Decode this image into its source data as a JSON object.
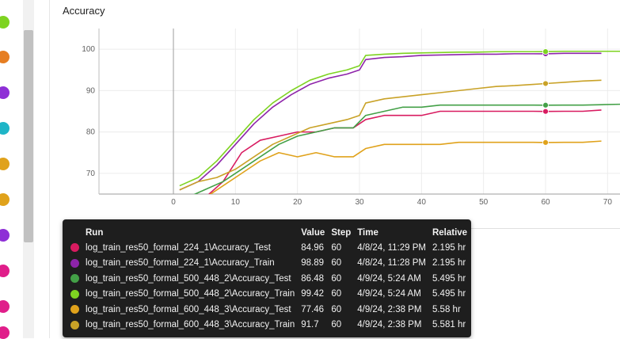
{
  "card": {
    "title": "Accuracy"
  },
  "sidebar": {
    "run_colors": [
      "#7ed321",
      "#e67e22",
      "#8e2fd6",
      "#1fb5c7",
      "#e0a21b",
      "#e0a21b",
      "#8e2fd6",
      "#e01e8a",
      "#e01e8a",
      "#e01e8a"
    ]
  },
  "chart_data": {
    "type": "line",
    "title": "Accuracy",
    "xlabel": "",
    "ylabel": "",
    "xlim": [
      -12,
      72
    ],
    "ylim": [
      65,
      105
    ],
    "xticks": [
      "0",
      "10",
      "20",
      "30",
      "40",
      "50",
      "60",
      "70"
    ],
    "yticks": [
      "70",
      "80",
      "90",
      "100"
    ],
    "crosshair_step": 60,
    "series": [
      {
        "name": "log_train_res50_formal_224_1\\Accuracy_Test",
        "color": "#d81b60",
        "x": [
          2,
          5,
          8,
          11,
          14,
          17,
          20,
          23,
          26,
          29,
          31,
          34,
          37,
          40,
          43,
          46,
          49,
          52,
          55,
          58,
          60,
          63,
          66,
          69
        ],
        "y": [
          63,
          64,
          68,
          75,
          78,
          79,
          80,
          80,
          81,
          81,
          83,
          84,
          84,
          84,
          85,
          85,
          85,
          85,
          85,
          85,
          84.96,
          85,
          85,
          85.3
        ]
      },
      {
        "name": "log_train_res50_formal_224_1\\Accuracy_Train",
        "color": "#8e24aa",
        "x": [
          1,
          4,
          7,
          10,
          13,
          16,
          19,
          22,
          25,
          28,
          30,
          31,
          34,
          37,
          40,
          43,
          46,
          49,
          52,
          55,
          58,
          60,
          63,
          66,
          69
        ],
        "y": [
          66,
          68,
          72,
          77,
          82,
          86,
          89,
          91.5,
          93,
          94,
          95,
          97.5,
          98,
          98.2,
          98.5,
          98.6,
          98.7,
          98.8,
          98.8,
          98.9,
          98.9,
          98.89,
          99,
          99,
          99
        ]
      },
      {
        "name": "log_train_res50_formal_500_448_2\\Accuracy_Test",
        "color": "#43a047",
        "x": [
          2,
          5,
          8,
          11,
          14,
          17,
          20,
          23,
          26,
          29,
          31,
          34,
          37,
          40,
          43,
          46,
          49,
          52,
          55,
          58,
          60,
          63,
          66,
          69,
          72
        ],
        "y": [
          64,
          66,
          68,
          71,
          74,
          77,
          79,
          80,
          81,
          81,
          84,
          85,
          86,
          86,
          86.5,
          86.5,
          86.5,
          86.5,
          86.5,
          86.5,
          86.48,
          86.5,
          86.5,
          86.6,
          86.7
        ]
      },
      {
        "name": "log_train_res50_formal_500_448_2\\Accuracy_Train",
        "color": "#7ed321",
        "x": [
          1,
          4,
          7,
          10,
          13,
          16,
          19,
          22,
          25,
          28,
          30,
          31,
          34,
          37,
          40,
          43,
          46,
          49,
          52,
          55,
          58,
          60,
          63,
          66,
          69,
          72
        ],
        "y": [
          67,
          69,
          73,
          78,
          83,
          87,
          90,
          92.5,
          94,
          95,
          96,
          98.5,
          98.8,
          99,
          99.1,
          99.2,
          99.3,
          99.3,
          99.4,
          99.4,
          99.4,
          99.42,
          99.5,
          99.5,
          99.5,
          99.5
        ]
      },
      {
        "name": "log_train_res50_formal_600_448_3\\Accuracy_Test",
        "color": "#e0a21b",
        "x": [
          2,
          5,
          8,
          11,
          14,
          17,
          20,
          23,
          26,
          29,
          31,
          34,
          37,
          40,
          43,
          46,
          49,
          52,
          55,
          58,
          60,
          63,
          66,
          69
        ],
        "y": [
          62,
          64,
          67,
          70,
          73,
          75,
          74,
          75,
          74,
          74,
          76,
          77,
          77,
          77,
          77,
          77.5,
          77.5,
          77.5,
          77.5,
          77.5,
          77.46,
          77.5,
          77.5,
          77.8
        ]
      },
      {
        "name": "log_train_res50_formal_600_448_3\\Accuracy_Train",
        "color": "#c9a227",
        "x": [
          1,
          4,
          7,
          10,
          13,
          16,
          19,
          22,
          25,
          28,
          30,
          31,
          34,
          37,
          40,
          43,
          46,
          49,
          52,
          55,
          58,
          60,
          63,
          66,
          69
        ],
        "y": [
          66,
          68,
          69,
          71,
          74,
          77,
          79,
          81,
          82,
          83,
          84,
          87,
          88,
          88.5,
          89,
          89.5,
          90,
          90.5,
          91,
          91.2,
          91.5,
          91.7,
          92,
          92.3,
          92.5
        ]
      }
    ]
  },
  "tooltip": {
    "headers": {
      "run": "Run",
      "value": "Value",
      "step": "Step",
      "time": "Time",
      "relative": "Relative"
    },
    "rows": [
      {
        "color": "#d81b60",
        "run": "log_train_res50_formal_224_1\\Accuracy_Test",
        "value": "84.96",
        "step": "60",
        "time": "4/8/24, 11:29 PM",
        "relative": "2.195 hr"
      },
      {
        "color": "#8e24aa",
        "run": "log_train_res50_formal_224_1\\Accuracy_Train",
        "value": "98.89",
        "step": "60",
        "time": "4/8/24, 11:28 PM",
        "relative": "2.195 hr"
      },
      {
        "color": "#43a047",
        "run": "log_train_res50_formal_500_448_2\\Accuracy_Test",
        "value": "86.48",
        "step": "60",
        "time": "4/9/24, 5:24 AM",
        "relative": "5.495 hr"
      },
      {
        "color": "#7ed321",
        "run": "log_train_res50_formal_500_448_2\\Accuracy_Train",
        "value": "99.42",
        "step": "60",
        "time": "4/9/24, 5:24 AM",
        "relative": "5.495 hr"
      },
      {
        "color": "#e0a21b",
        "run": "log_train_res50_formal_600_448_3\\Accuracy_Test",
        "value": "77.46",
        "step": "60",
        "time": "4/9/24, 2:38 PM",
        "relative": "5.58 hr"
      },
      {
        "color": "#c9a227",
        "run": "log_train_res50_formal_600_448_3\\Accuracy_Train",
        "value": "91.7",
        "step": "60",
        "time": "4/9/24, 2:38 PM",
        "relative": "5.581 hr"
      }
    ]
  }
}
